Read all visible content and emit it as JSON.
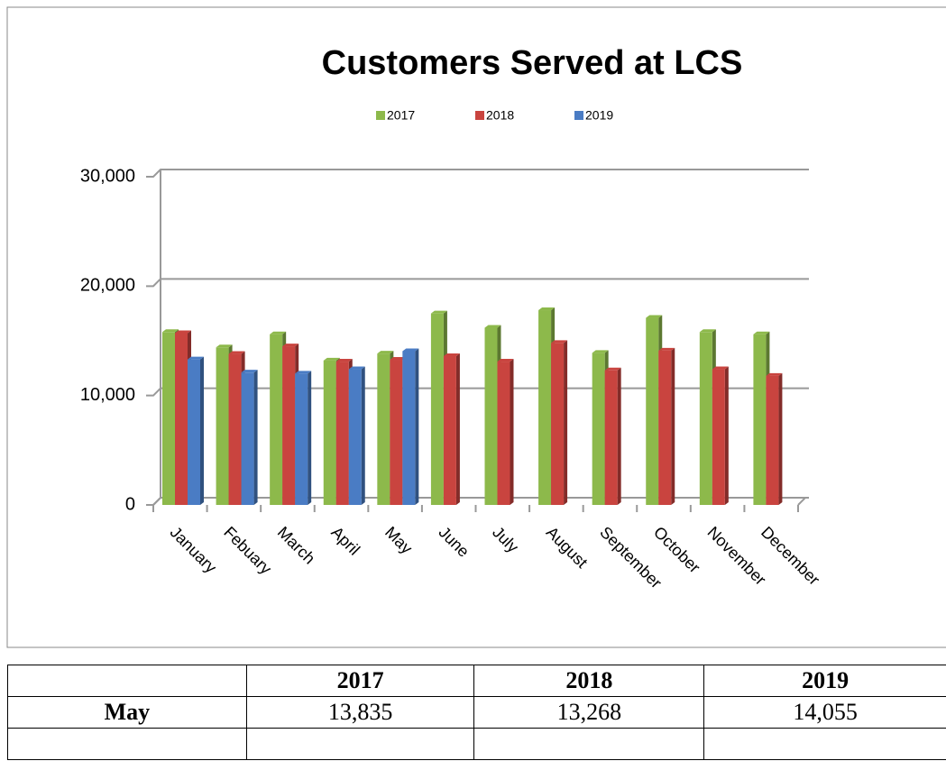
{
  "chart_data": {
    "type": "bar",
    "title": "Customers Served at LCS",
    "categories": [
      "January",
      "Febuary",
      "March",
      "April",
      "May",
      "June",
      "July",
      "August",
      "September",
      "October",
      "November",
      "December"
    ],
    "series": [
      {
        "name": "2017",
        "color": "#8db94b",
        "values": [
          15800,
          14400,
          15600,
          13200,
          13835,
          17500,
          16200,
          17800,
          13900,
          17100,
          15800,
          15600
        ]
      },
      {
        "name": "2018",
        "color": "#c9443f",
        "values": [
          15700,
          13800,
          14500,
          13100,
          13268,
          13600,
          13100,
          14800,
          12300,
          14100,
          12400,
          11800
        ]
      },
      {
        "name": "2019",
        "color": "#4a7cc4",
        "values": [
          13300,
          12100,
          12000,
          12400,
          14055,
          null,
          null,
          null,
          null,
          null,
          null,
          null
        ]
      }
    ],
    "ylim": [
      0,
      30000
    ],
    "yticks": [
      0,
      {
        "value": 10000,
        "label": "10,000"
      },
      {
        "value": 20000,
        "label": "20,000"
      },
      {
        "value": 30000,
        "label": "30,000"
      }
    ],
    "grid": true,
    "legend": "top"
  },
  "table": {
    "columns": [
      "2017",
      "2018",
      "2019"
    ],
    "rows": [
      {
        "label": "May",
        "cells": [
          "13,835",
          "13,268",
          "14,055"
        ]
      }
    ]
  }
}
